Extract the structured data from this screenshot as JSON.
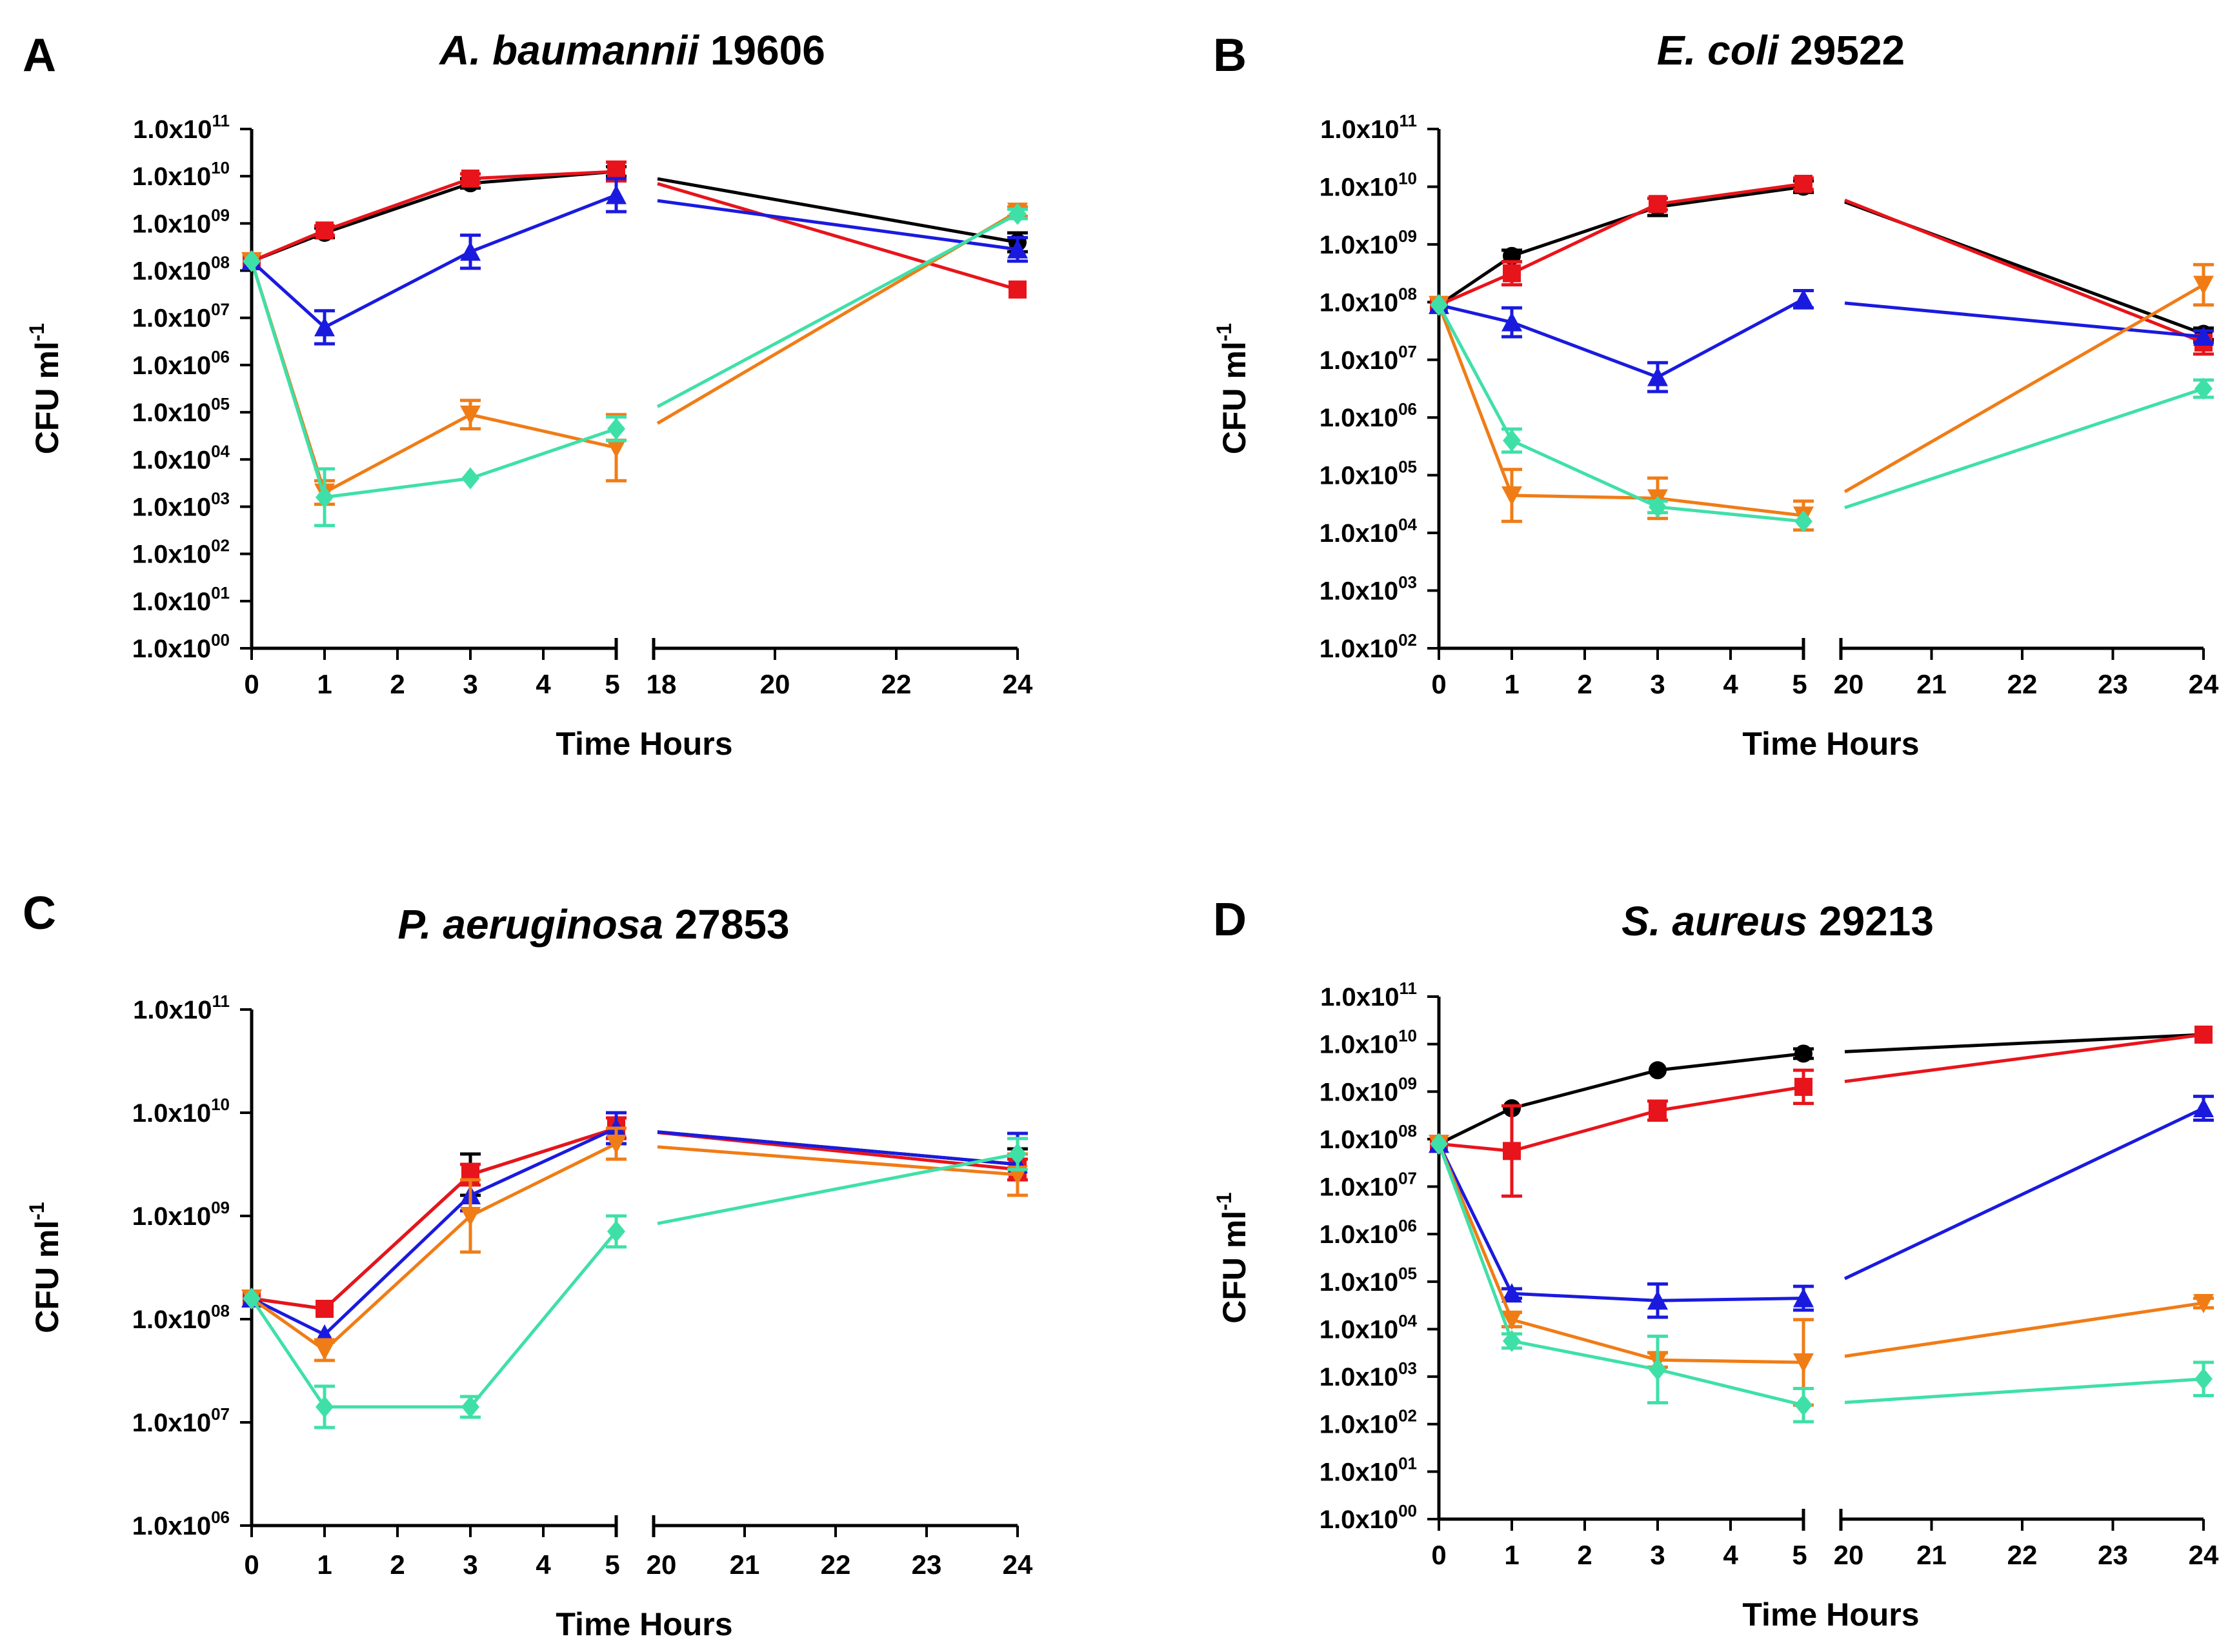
{
  "figure": {
    "description_note": "Time-kill curves, four panels",
    "series_colors": {
      "black": "#000000",
      "red": "#e8141b",
      "blue": "#1a1adf",
      "orange": "#f07c16",
      "teal": "#3fe0a8"
    }
  },
  "chart_data": [
    {
      "type": "line",
      "panel_letter": "A",
      "title_italic": "A. baumannii",
      "title_plain": " 19606",
      "xlabel": "Time Hours",
      "ylabel": "CFU ml",
      "ylabel_sup": "-1",
      "y_scale": "log10",
      "ylim_exp": [
        0,
        11
      ],
      "yticks": [
        {
          "exp": 11,
          "mant": "1.0x10",
          "sup": "11"
        },
        {
          "exp": 10,
          "mant": "1.0x10",
          "sup": "10"
        },
        {
          "exp": 9,
          "mant": "1.0x10",
          "sup": "09"
        },
        {
          "exp": 8,
          "mant": "1.0x10",
          "sup": "08"
        },
        {
          "exp": 7,
          "mant": "1.0x10",
          "sup": "07"
        },
        {
          "exp": 6,
          "mant": "1.0x10",
          "sup": "06"
        },
        {
          "exp": 5,
          "mant": "1.0x10",
          "sup": "05"
        },
        {
          "exp": 4,
          "mant": "1.0x10",
          "sup": "04"
        },
        {
          "exp": 3,
          "mant": "1.0x10",
          "sup": "03"
        },
        {
          "exp": 2,
          "mant": "1.0x10",
          "sup": "02"
        },
        {
          "exp": 1,
          "mant": "1.0x10",
          "sup": "01"
        },
        {
          "exp": 0,
          "mant": "1.0x10",
          "sup": "00"
        }
      ],
      "x_segment1_ticks": [
        "0",
        "1",
        "2",
        "3",
        "4",
        "5"
      ],
      "x_segment2_ticks": [
        "18",
        "20",
        "22",
        "24"
      ],
      "x_segment2_range": [
        18,
        24
      ],
      "series": [
        {
          "name": "black",
          "x": [
            0,
            1,
            3,
            5,
            24
          ],
          "log10_cfu": [
            8.2,
            8.8,
            9.85,
            10.1,
            8.6
          ],
          "err": [
            0.05,
            0.1,
            0.1,
            0.1,
            0.2
          ]
        },
        {
          "name": "red",
          "x": [
            0,
            1,
            3,
            5,
            24
          ],
          "log10_cfu": [
            8.2,
            8.85,
            9.95,
            10.1,
            7.6
          ],
          "err": [
            0.05,
            0.1,
            0.1,
            0.2,
            0.05
          ]
        },
        {
          "name": "blue",
          "x": [
            0,
            1,
            3,
            5,
            24
          ],
          "log10_cfu": [
            8.2,
            6.8,
            8.4,
            9.6,
            8.45
          ],
          "err": [
            0.05,
            0.35,
            0.35,
            0.35,
            0.25
          ]
        },
        {
          "name": "orange",
          "x": [
            0,
            1,
            3,
            5,
            24
          ],
          "log10_cfu": [
            8.2,
            3.3,
            4.95,
            4.25,
            9.25
          ],
          "err": [
            0.05,
            0.25,
            0.3,
            0.7,
            0.1
          ]
        },
        {
          "name": "teal",
          "x": [
            0,
            1,
            3,
            5,
            24
          ],
          "log10_cfu": [
            8.2,
            3.2,
            3.6,
            4.65,
            9.2
          ],
          "err": [
            0.05,
            0.6,
            0.05,
            0.25,
            0.1
          ]
        }
      ]
    },
    {
      "type": "line",
      "panel_letter": "B",
      "title_italic": "E. coli",
      "title_plain": " 29522",
      "xlabel": "Time Hours",
      "ylabel": "CFU ml",
      "ylabel_sup": "-1",
      "y_scale": "log10",
      "ylim_exp": [
        2,
        11
      ],
      "yticks": [
        {
          "exp": 11,
          "mant": "1.0x10",
          "sup": "11"
        },
        {
          "exp": 10,
          "mant": "1.0x10",
          "sup": "10"
        },
        {
          "exp": 9,
          "mant": "1.0x10",
          "sup": "09"
        },
        {
          "exp": 8,
          "mant": "1.0x10",
          "sup": "08"
        },
        {
          "exp": 7,
          "mant": "1.0x10",
          "sup": "07"
        },
        {
          "exp": 6,
          "mant": "1.0x10",
          "sup": "06"
        },
        {
          "exp": 5,
          "mant": "1.0x10",
          "sup": "05"
        },
        {
          "exp": 4,
          "mant": "1.0x10",
          "sup": "04"
        },
        {
          "exp": 3,
          "mant": "1.0x10",
          "sup": "03"
        },
        {
          "exp": 2,
          "mant": "1.0x10",
          "sup": "02"
        }
      ],
      "x_segment1_ticks": [
        "0",
        "1",
        "2",
        "3",
        "4",
        "5"
      ],
      "x_segment2_ticks": [
        "20",
        "21",
        "22",
        "23",
        "24"
      ],
      "x_segment2_range": [
        20,
        24
      ],
      "series": [
        {
          "name": "black",
          "x": [
            0,
            1,
            3,
            5,
            24
          ],
          "log10_cfu": [
            7.95,
            8.8,
            9.65,
            10.0,
            7.45
          ],
          "err": [
            0.05,
            0.1,
            0.15,
            0.1,
            0.1
          ]
        },
        {
          "name": "red",
          "x": [
            0,
            1,
            3,
            5,
            24
          ],
          "log10_cfu": [
            7.95,
            8.5,
            9.7,
            10.05,
            7.3
          ],
          "err": [
            0.05,
            0.2,
            0.1,
            0.1,
            0.2
          ]
        },
        {
          "name": "blue",
          "x": [
            0,
            1,
            3,
            5,
            24
          ],
          "log10_cfu": [
            7.95,
            7.65,
            6.7,
            8.05,
            7.4
          ],
          "err": [
            0.05,
            0.25,
            0.25,
            0.15,
            0.1
          ]
        },
        {
          "name": "orange",
          "x": [
            0,
            1,
            3,
            5,
            24
          ],
          "log10_cfu": [
            7.95,
            4.65,
            4.6,
            4.3,
            8.3
          ],
          "err": [
            0.05,
            0.45,
            0.35,
            0.25,
            0.35
          ]
        },
        {
          "name": "teal",
          "x": [
            0,
            1,
            3,
            5,
            24
          ],
          "log10_cfu": [
            7.95,
            5.6,
            4.45,
            4.2,
            6.5
          ],
          "err": [
            0.05,
            0.2,
            0.1,
            0.05,
            0.15
          ]
        }
      ]
    },
    {
      "type": "line",
      "panel_letter": "C",
      "title_italic": "P. aeruginosa",
      "title_plain": " 27853",
      "xlabel": "Time Hours",
      "ylabel": "CFU ml",
      "ylabel_sup": "-1",
      "y_scale": "log10",
      "ylim_exp": [
        6,
        11
      ],
      "yticks": [
        {
          "exp": 11,
          "mant": "1.0x10",
          "sup": "11"
        },
        {
          "exp": 10,
          "mant": "1.0x10",
          "sup": "10"
        },
        {
          "exp": 9,
          "mant": "1.0x10",
          "sup": "09"
        },
        {
          "exp": 8,
          "mant": "1.0x10",
          "sup": "08"
        },
        {
          "exp": 7,
          "mant": "1.0x10",
          "sup": "07"
        },
        {
          "exp": 6,
          "mant": "1.0x10",
          "sup": "06"
        }
      ],
      "x_segment1_ticks": [
        "0",
        "1",
        "2",
        "3",
        "4",
        "5"
      ],
      "x_segment2_ticks": [
        "20",
        "21",
        "22",
        "23",
        "24"
      ],
      "x_segment2_range": [
        20,
        24
      ],
      "series": [
        {
          "name": "black",
          "x": [
            0,
            1,
            3,
            5,
            24
          ],
          "log10_cfu": [
            8.2,
            8.1,
            9.4,
            9.85,
            9.5
          ],
          "err": [
            0.05,
            0.05,
            0.2,
            0.1,
            0.15
          ]
        },
        {
          "name": "red",
          "x": [
            0,
            1,
            3,
            5,
            24
          ],
          "log10_cfu": [
            8.2,
            8.1,
            9.4,
            9.85,
            9.45
          ],
          "err": [
            0.05,
            0.05,
            0.1,
            0.1,
            0.1
          ]
        },
        {
          "name": "blue",
          "x": [
            0,
            1,
            3,
            5,
            24
          ],
          "log10_cfu": [
            8.2,
            7.85,
            9.2,
            9.85,
            9.5
          ],
          "err": [
            0.05,
            0.05,
            0.15,
            0.15,
            0.3
          ]
        },
        {
          "name": "orange",
          "x": [
            0,
            1,
            3,
            5,
            24
          ],
          "log10_cfu": [
            8.2,
            7.7,
            9.0,
            9.7,
            9.4
          ],
          "err": [
            0.05,
            0.1,
            0.35,
            0.15,
            0.2
          ]
        },
        {
          "name": "teal",
          "x": [
            0,
            1,
            3,
            5,
            24
          ],
          "log10_cfu": [
            8.2,
            7.15,
            7.15,
            8.85,
            9.6
          ],
          "err": [
            0.05,
            0.2,
            0.1,
            0.15,
            0.15
          ]
        }
      ]
    },
    {
      "type": "line",
      "panel_letter": "D",
      "title_italic": "S. aureus",
      "title_plain": " 29213",
      "xlabel": "Time Hours",
      "ylabel": "CFU ml",
      "ylabel_sup": "-1",
      "y_scale": "log10",
      "ylim_exp": [
        0,
        11
      ],
      "yticks": [
        {
          "exp": 11,
          "mant": "1.0x10",
          "sup": "11"
        },
        {
          "exp": 10,
          "mant": "1.0x10",
          "sup": "10"
        },
        {
          "exp": 9,
          "mant": "1.0x10",
          "sup": "09"
        },
        {
          "exp": 8,
          "mant": "1.0x10",
          "sup": "08"
        },
        {
          "exp": 7,
          "mant": "1.0x10",
          "sup": "07"
        },
        {
          "exp": 6,
          "mant": "1.0x10",
          "sup": "06"
        },
        {
          "exp": 5,
          "mant": "1.0x10",
          "sup": "05"
        },
        {
          "exp": 4,
          "mant": "1.0x10",
          "sup": "04"
        },
        {
          "exp": 3,
          "mant": "1.0x10",
          "sup": "03"
        },
        {
          "exp": 2,
          "mant": "1.0x10",
          "sup": "02"
        },
        {
          "exp": 1,
          "mant": "1.0x10",
          "sup": "01"
        },
        {
          "exp": 0,
          "mant": "1.0x10",
          "sup": "00"
        }
      ],
      "x_segment1_ticks": [
        "0",
        "1",
        "2",
        "3",
        "4",
        "5"
      ],
      "x_segment2_ticks": [
        "20",
        "21",
        "22",
        "23",
        "24"
      ],
      "x_segment2_range": [
        20,
        24
      ],
      "series": [
        {
          "name": "black",
          "x": [
            0,
            1,
            3,
            5,
            24
          ],
          "log10_cfu": [
            7.9,
            8.65,
            9.45,
            9.8,
            10.2
          ],
          "err": [
            0.05,
            0.05,
            0.05,
            0.1,
            0.05
          ]
        },
        {
          "name": "red",
          "x": [
            0,
            1,
            3,
            5,
            24
          ],
          "log10_cfu": [
            7.9,
            7.75,
            8.6,
            9.1,
            10.2
          ],
          "err": [
            0.05,
            0.95,
            0.2,
            0.35,
            0.05
          ]
        },
        {
          "name": "blue",
          "x": [
            0,
            1,
            3,
            5,
            24
          ],
          "log10_cfu": [
            7.9,
            4.75,
            4.6,
            4.65,
            8.65
          ],
          "err": [
            0.05,
            0.1,
            0.35,
            0.25,
            0.25
          ]
        },
        {
          "name": "orange",
          "x": [
            0,
            1,
            3,
            5,
            24
          ],
          "log10_cfu": [
            7.9,
            4.2,
            3.35,
            3.3,
            4.55
          ],
          "err": [
            0.05,
            0.15,
            0.15,
            0.9,
            0.1
          ]
        },
        {
          "name": "teal",
          "x": [
            0,
            1,
            3,
            5,
            24
          ],
          "log10_cfu": [
            7.9,
            3.75,
            3.15,
            2.4,
            2.95
          ],
          "err": [
            0.05,
            0.15,
            0.7,
            0.35,
            0.35
          ]
        }
      ]
    }
  ]
}
